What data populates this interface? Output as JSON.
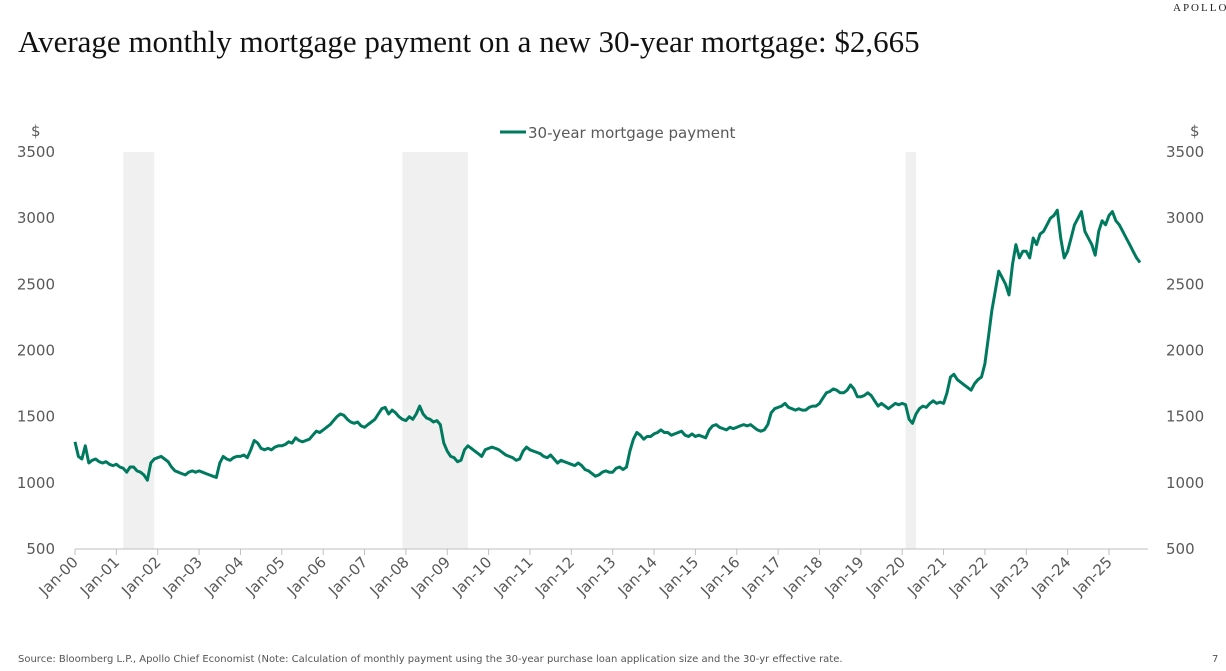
{
  "brand": "APOLLO",
  "page_number": "7",
  "chart_data": {
    "type": "line",
    "title": "Average monthly mortgage payment on a new 30-year mortgage: $2,665",
    "y_unit": "$",
    "y2_unit": "$",
    "source": "Source: Bloomberg L.P., Apollo Chief Economist (Note: Calculation of monthly payment using the 30-year purchase loan application size and the 30-yr effective rate.",
    "legend": "top",
    "ylim": [
      500,
      3500
    ],
    "yticks": [
      500,
      1000,
      1500,
      2000,
      2500,
      3000,
      3500
    ],
    "y2lim": [
      500,
      3500
    ],
    "y2ticks": [
      500,
      1000,
      1500,
      2000,
      2500,
      3000,
      3500
    ],
    "xticks": [
      {
        "value": "2000-01",
        "label": "Jan-00"
      },
      {
        "value": "2001-01",
        "label": "Jan-01"
      },
      {
        "value": "2002-01",
        "label": "Jan-02"
      },
      {
        "value": "2003-01",
        "label": "Jan-03"
      },
      {
        "value": "2004-01",
        "label": "Jan-04"
      },
      {
        "value": "2005-01",
        "label": "Jan-05"
      },
      {
        "value": "2006-01",
        "label": "Jan-06"
      },
      {
        "value": "2007-01",
        "label": "Jan-07"
      },
      {
        "value": "2008-01",
        "label": "Jan-08"
      },
      {
        "value": "2009-01",
        "label": "Jan-09"
      },
      {
        "value": "2010-01",
        "label": "Jan-10"
      },
      {
        "value": "2011-01",
        "label": "Jan-11"
      },
      {
        "value": "2012-01",
        "label": "Jan-12"
      },
      {
        "value": "2013-01",
        "label": "Jan-13"
      },
      {
        "value": "2014-01",
        "label": "Jan-14"
      },
      {
        "value": "2015-01",
        "label": "Jan-15"
      },
      {
        "value": "2016-01",
        "label": "Jan-16"
      },
      {
        "value": "2017-01",
        "label": "Jan-17"
      },
      {
        "value": "2018-01",
        "label": "Jan-18"
      },
      {
        "value": "2019-01",
        "label": "Jan-19"
      },
      {
        "value": "2020-01",
        "label": "Jan-20"
      },
      {
        "value": "2021-01",
        "label": "Jan-21"
      },
      {
        "value": "2022-01",
        "label": "Jan-22"
      },
      {
        "value": "2023-01",
        "label": "Jan-23"
      },
      {
        "value": "2024-01",
        "label": "Jan-24"
      },
      {
        "value": "2025-01",
        "label": "Jan-25"
      }
    ],
    "shaded_periods": [
      [
        "2001-03",
        "2001-11"
      ],
      [
        "2007-12",
        "2009-06"
      ],
      [
        "2020-02",
        "2020-04"
      ]
    ],
    "x": [
      "2000-01",
      "2000-02",
      "2000-03",
      "2000-04",
      "2000-05",
      "2000-06",
      "2000-07",
      "2000-08",
      "2000-09",
      "2000-10",
      "2000-11",
      "2000-12",
      "2001-01",
      "2001-02",
      "2001-03",
      "2001-04",
      "2001-05",
      "2001-06",
      "2001-07",
      "2001-08",
      "2001-09",
      "2001-10",
      "2001-11",
      "2001-12",
      "2002-01",
      "2002-02",
      "2002-03",
      "2002-04",
      "2002-05",
      "2002-06",
      "2002-07",
      "2002-08",
      "2002-09",
      "2002-10",
      "2002-11",
      "2002-12",
      "2003-01",
      "2003-02",
      "2003-03",
      "2003-04",
      "2003-05",
      "2003-06",
      "2003-07",
      "2003-08",
      "2003-09",
      "2003-10",
      "2003-11",
      "2003-12",
      "2004-01",
      "2004-02",
      "2004-03",
      "2004-04",
      "2004-05",
      "2004-06",
      "2004-07",
      "2004-08",
      "2004-09",
      "2004-10",
      "2004-11",
      "2004-12",
      "2005-01",
      "2005-02",
      "2005-03",
      "2005-04",
      "2005-05",
      "2005-06",
      "2005-07",
      "2005-08",
      "2005-09",
      "2005-10",
      "2005-11",
      "2005-12",
      "2006-01",
      "2006-02",
      "2006-03",
      "2006-04",
      "2006-05",
      "2006-06",
      "2006-07",
      "2006-08",
      "2006-09",
      "2006-10",
      "2006-11",
      "2006-12",
      "2007-01",
      "2007-02",
      "2007-03",
      "2007-04",
      "2007-05",
      "2007-06",
      "2007-07",
      "2007-08",
      "2007-09",
      "2007-10",
      "2007-11",
      "2007-12",
      "2008-01",
      "2008-02",
      "2008-03",
      "2008-04",
      "2008-05",
      "2008-06",
      "2008-07",
      "2008-08",
      "2008-09",
      "2008-10",
      "2008-11",
      "2008-12",
      "2009-01",
      "2009-02",
      "2009-03",
      "2009-04",
      "2009-05",
      "2009-06",
      "2009-07",
      "2009-08",
      "2009-09",
      "2009-10",
      "2009-11",
      "2009-12",
      "2010-01",
      "2010-02",
      "2010-03",
      "2010-04",
      "2010-05",
      "2010-06",
      "2010-07",
      "2010-08",
      "2010-09",
      "2010-10",
      "2010-11",
      "2010-12",
      "2011-01",
      "2011-02",
      "2011-03",
      "2011-04",
      "2011-05",
      "2011-06",
      "2011-07",
      "2011-08",
      "2011-09",
      "2011-10",
      "2011-11",
      "2011-12",
      "2012-01",
      "2012-02",
      "2012-03",
      "2012-04",
      "2012-05",
      "2012-06",
      "2012-07",
      "2012-08",
      "2012-09",
      "2012-10",
      "2012-11",
      "2012-12",
      "2013-01",
      "2013-02",
      "2013-03",
      "2013-04",
      "2013-05",
      "2013-06",
      "2013-07",
      "2013-08",
      "2013-09",
      "2013-10",
      "2013-11",
      "2013-12",
      "2014-01",
      "2014-02",
      "2014-03",
      "2014-04",
      "2014-05",
      "2014-06",
      "2014-07",
      "2014-08",
      "2014-09",
      "2014-10",
      "2014-11",
      "2014-12",
      "2015-01",
      "2015-02",
      "2015-03",
      "2015-04",
      "2015-05",
      "2015-06",
      "2015-07",
      "2015-08",
      "2015-09",
      "2015-10",
      "2015-11",
      "2015-12",
      "2016-01",
      "2016-02",
      "2016-03",
      "2016-04",
      "2016-05",
      "2016-06",
      "2016-07",
      "2016-08",
      "2016-09",
      "2016-10",
      "2016-11",
      "2016-12",
      "2017-01",
      "2017-02",
      "2017-03",
      "2017-04",
      "2017-05",
      "2017-06",
      "2017-07",
      "2017-08",
      "2017-09",
      "2017-10",
      "2017-11",
      "2017-12",
      "2018-01",
      "2018-02",
      "2018-03",
      "2018-04",
      "2018-05",
      "2018-06",
      "2018-07",
      "2018-08",
      "2018-09",
      "2018-10",
      "2018-11",
      "2018-12",
      "2019-01",
      "2019-02",
      "2019-03",
      "2019-04",
      "2019-05",
      "2019-06",
      "2019-07",
      "2019-08",
      "2019-09",
      "2019-10",
      "2019-11",
      "2019-12",
      "2020-01",
      "2020-02",
      "2020-03",
      "2020-04",
      "2020-05",
      "2020-06",
      "2020-07",
      "2020-08",
      "2020-09",
      "2020-10",
      "2020-11",
      "2020-12",
      "2021-01",
      "2021-02",
      "2021-03",
      "2021-04",
      "2021-05",
      "2021-06",
      "2021-07",
      "2021-08",
      "2021-09",
      "2021-10",
      "2021-11",
      "2021-12",
      "2022-01",
      "2022-02",
      "2022-03",
      "2022-04",
      "2022-05",
      "2022-06",
      "2022-07",
      "2022-08",
      "2022-09",
      "2022-10",
      "2022-11",
      "2022-12",
      "2023-01",
      "2023-02",
      "2023-03",
      "2023-04",
      "2023-05",
      "2023-06",
      "2023-07",
      "2023-08",
      "2023-09",
      "2023-10",
      "2023-11",
      "2023-12",
      "2024-01",
      "2024-02",
      "2024-03",
      "2024-04",
      "2024-05",
      "2024-06",
      "2024-07",
      "2024-08",
      "2024-09",
      "2024-10",
      "2024-11",
      "2024-12",
      "2025-01",
      "2025-02",
      "2025-03",
      "2025-04",
      "2025-05",
      "2025-06",
      "2025-07",
      "2025-08",
      "2025-09",
      "2025-10"
    ],
    "series": [
      {
        "name": "30-year mortgage payment",
        "color": "#007a5e",
        "values": [
          1310,
          1200,
          1180,
          1280,
          1150,
          1170,
          1180,
          1160,
          1150,
          1160,
          1140,
          1130,
          1140,
          1120,
          1110,
          1080,
          1120,
          1120,
          1090,
          1080,
          1060,
          1020,
          1150,
          1180,
          1190,
          1200,
          1180,
          1160,
          1120,
          1090,
          1080,
          1070,
          1060,
          1080,
          1090,
          1080,
          1090,
          1080,
          1070,
          1060,
          1050,
          1040,
          1150,
          1200,
          1180,
          1170,
          1190,
          1200,
          1200,
          1210,
          1190,
          1250,
          1320,
          1300,
          1260,
          1250,
          1260,
          1250,
          1270,
          1280,
          1280,
          1290,
          1310,
          1300,
          1340,
          1320,
          1310,
          1320,
          1330,
          1360,
          1390,
          1380,
          1400,
          1420,
          1440,
          1470,
          1500,
          1520,
          1510,
          1480,
          1460,
          1450,
          1460,
          1430,
          1420,
          1440,
          1460,
          1480,
          1520,
          1560,
          1570,
          1520,
          1550,
          1530,
          1500,
          1480,
          1470,
          1500,
          1480,
          1520,
          1580,
          1520,
          1490,
          1480,
          1460,
          1470,
          1440,
          1300,
          1240,
          1200,
          1190,
          1160,
          1170,
          1250,
          1280,
          1260,
          1240,
          1220,
          1200,
          1250,
          1260,
          1270,
          1260,
          1250,
          1230,
          1210,
          1200,
          1190,
          1170,
          1180,
          1240,
          1270,
          1250,
          1240,
          1230,
          1220,
          1200,
          1190,
          1210,
          1180,
          1150,
          1170,
          1160,
          1150,
          1140,
          1130,
          1150,
          1130,
          1100,
          1090,
          1070,
          1050,
          1060,
          1080,
          1090,
          1080,
          1080,
          1110,
          1120,
          1100,
          1120,
          1240,
          1330,
          1380,
          1360,
          1330,
          1350,
          1350,
          1370,
          1380,
          1400,
          1380,
          1380,
          1360,
          1370,
          1380,
          1390,
          1360,
          1350,
          1370,
          1350,
          1360,
          1350,
          1340,
          1400,
          1430,
          1440,
          1420,
          1410,
          1400,
          1420,
          1410,
          1420,
          1430,
          1440,
          1430,
          1440,
          1420,
          1400,
          1390,
          1400,
          1440,
          1530,
          1560,
          1570,
          1580,
          1600,
          1570,
          1560,
          1550,
          1560,
          1550,
          1550,
          1570,
          1580,
          1580,
          1600,
          1640,
          1680,
          1690,
          1710,
          1700,
          1680,
          1680,
          1700,
          1740,
          1710,
          1650,
          1650,
          1660,
          1680,
          1660,
          1620,
          1580,
          1600,
          1580,
          1560,
          1580,
          1600,
          1590,
          1600,
          1590,
          1480,
          1450,
          1520,
          1560,
          1580,
          1570,
          1600,
          1620,
          1600,
          1610,
          1600,
          1680,
          1800,
          1820,
          1780,
          1760,
          1740,
          1720,
          1700,
          1750,
          1780,
          1800,
          1900,
          2100,
          2300,
          2450,
          2600,
          2550,
          2500,
          2420,
          2650,
          2800,
          2700,
          2750,
          2750,
          2700,
          2850,
          2800,
          2880,
          2900,
          2950,
          3000,
          3020,
          3060,
          2850,
          2700,
          2750,
          2850,
          2950,
          3000,
          3050,
          2900,
          2850,
          2800,
          2720,
          2900,
          2980,
          2950,
          3020,
          3050,
          2980,
          2950,
          2900,
          2850,
          2800,
          2750,
          2700,
          2665
        ]
      }
    ]
  }
}
